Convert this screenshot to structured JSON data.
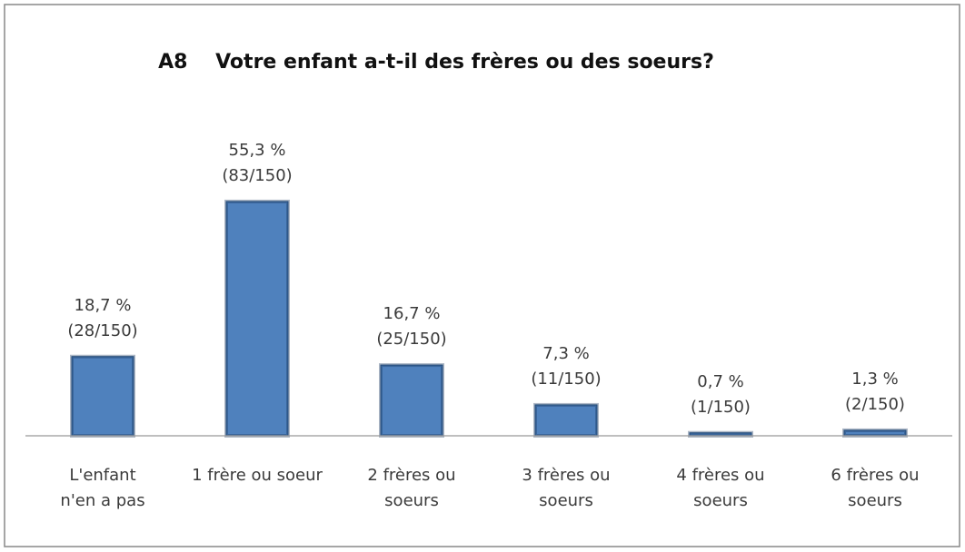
{
  "chart_data": {
    "type": "bar",
    "title": "A8    Votre enfant a-t-il des frères ou des soeurs?",
    "categories": [
      "L'enfant\nn'en a pas",
      "1 frère ou soeur",
      "2 frères ou\nsoeurs",
      "3 frères ou\nsoeurs",
      "4 frères ou\nsoeurs",
      "6 frères ou\nsoeurs"
    ],
    "values": [
      18.7,
      55.3,
      16.7,
      7.3,
      0.7,
      1.3
    ],
    "value_labels": [
      "18,7 %\n(28/150)",
      "55,3 %\n(83/150)",
      "16,7 %\n(25/150)",
      "7,3 %\n(11/150)",
      "0,7 %\n(1/150)",
      "1,3 %\n(2/150)"
    ],
    "color": "#4f81bd",
    "ylim": [
      0,
      60
    ]
  }
}
